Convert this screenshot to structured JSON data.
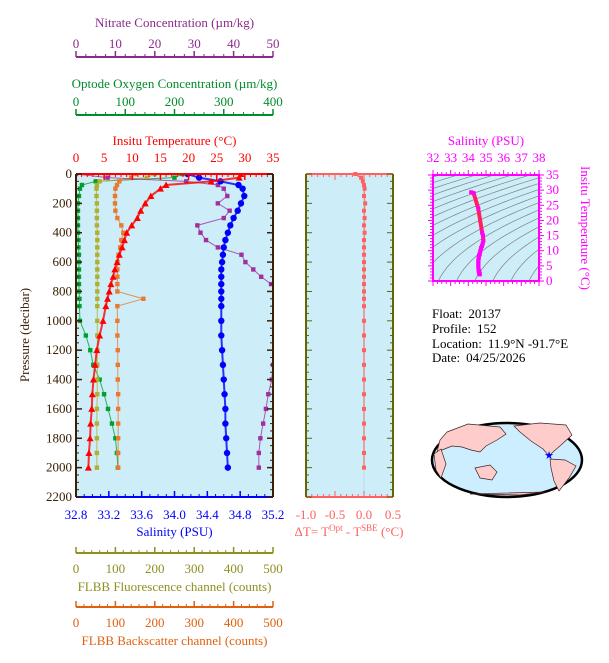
{
  "chart_data": [
    {
      "type": "line",
      "title": "",
      "grid": false,
      "axes": {
        "pressure": {
          "label": "Pressure (decibar)",
          "range": [
            0,
            2200
          ],
          "tick_labels": [
            "0",
            "200",
            "400",
            "600",
            "800",
            "1000",
            "1200",
            "1400",
            "1600",
            "1800",
            "2000",
            "2200"
          ],
          "color": "#3a2005",
          "inverted": true
        },
        "temperature": {
          "label": "Insitu Temperature (°C)",
          "range": [
            0,
            35
          ],
          "tick_labels": [
            "0",
            "5",
            "10",
            "15",
            "20",
            "25",
            "30",
            "35"
          ],
          "color": "#ff0000"
        },
        "salinity": {
          "label": "Salinity (PSU)",
          "range": [
            32.8,
            35.2
          ],
          "tick_labels": [
            "32.8",
            "33.2",
            "33.6",
            "34.0",
            "34.4",
            "34.8",
            "35.2"
          ],
          "color": "#0000ff"
        },
        "oxygen": {
          "label": "Optode Oxygen Concentration (µm/kg)",
          "range": [
            0,
            400
          ],
          "tick_labels": [
            "0",
            "100",
            "200",
            "300",
            "400"
          ],
          "color": "#008c2a"
        },
        "nitrate": {
          "label": "Nitrate Concentration (µm/kg)",
          "range": [
            0,
            50
          ],
          "tick_labels": [
            "0",
            "10",
            "20",
            "30",
            "40",
            "50"
          ],
          "color": "#8b2a8b"
        },
        "fluorescence": {
          "label": "FLBB Fluorescence channel (counts)",
          "range": [
            0,
            500
          ],
          "tick_labels": [
            "0",
            "100",
            "200",
            "300",
            "400",
            "500"
          ],
          "color": "#8f8f1f"
        },
        "backscatter": {
          "label": "FLBB Backscatter channel (counts)",
          "range": [
            0,
            500
          ],
          "tick_labels": [
            "0",
            "100",
            "200",
            "300",
            "400",
            "500"
          ],
          "color": "#e06010"
        }
      },
      "pressure": [
        0,
        25,
        50,
        75,
        100,
        150,
        200,
        250,
        300,
        350,
        400,
        450,
        500,
        550,
        600,
        650,
        700,
        750,
        800,
        850,
        900,
        1000,
        1100,
        1200,
        1300,
        1400,
        1500,
        1600,
        1700,
        1800,
        1900,
        2000
      ],
      "series": [
        {
          "axis": "oxygen",
          "color": "#00a030",
          "marker": "square",
          "values": [
            216,
            200,
            40,
            12,
            8,
            6,
            4,
            4,
            4,
            4,
            4,
            5,
            5,
            6,
            6,
            6,
            6,
            6,
            6,
            7,
            7,
            8,
            20,
            29,
            35,
            48,
            57,
            65,
            73,
            80,
            83,
            85
          ]
        },
        {
          "axis": "fluorescence",
          "color": "#b0b030",
          "marker": "square",
          "values": [
            200,
            180,
            60,
            53,
            52,
            52,
            53,
            53,
            53,
            53,
            54,
            54,
            54,
            54,
            54,
            54,
            54,
            54,
            54,
            54,
            54,
            54,
            54,
            54,
            54,
            54,
            54,
            53,
            53,
            53,
            53,
            53
          ]
        },
        {
          "axis": "backscatter",
          "color": "#e87a30",
          "marker": "square",
          "values": [
            150,
            140,
            110,
            104,
            100,
            99,
            99,
            100,
            105,
            115,
            120,
            115,
            112,
            108,
            105,
            105,
            105,
            105,
            105,
            171,
            105,
            105,
            105,
            106,
            106,
            106,
            107,
            107,
            107,
            107,
            107,
            107
          ]
        },
        {
          "axis": "nitrate",
          "color": "#a030a0",
          "marker": "square",
          "values": [
            0,
            8,
            28,
            36,
            37.5,
            38.4,
            36,
            39,
            37.5,
            30.8,
            31.6,
            33,
            36,
            42,
            43,
            45,
            47,
            49.5,
            51,
            52,
            52,
            52,
            52,
            51,
            50,
            49.7,
            48.8,
            48.2,
            47.5,
            46.8,
            46.4,
            46.4
          ]
        },
        {
          "axis": "salinity",
          "color": "#0000ff",
          "marker": "circle",
          "values": [
            34.16,
            34.3,
            34.56,
            34.78,
            34.83,
            34.85,
            34.81,
            34.77,
            34.72,
            34.68,
            34.65,
            34.62,
            34.6,
            34.59,
            34.58,
            34.57,
            34.57,
            34.57,
            34.57,
            34.57,
            34.57,
            34.57,
            34.57,
            34.58,
            34.59,
            34.6,
            34.61,
            34.62,
            34.62,
            34.63,
            34.64,
            34.65
          ]
        },
        {
          "axis": "temperature",
          "color": "#ff0000",
          "marker": "triangle",
          "values": [
            29.3,
            29.0,
            24,
            16,
            15,
            13.3,
            12.3,
            11.5,
            10.9,
            9.9,
            9.0,
            8.6,
            8.2,
            7.7,
            7.3,
            6.9,
            6.6,
            6.2,
            5.9,
            5.6,
            5.3,
            4.8,
            4.2,
            3.7,
            3.4,
            3.1,
            2.9,
            2.8,
            2.6,
            2.5,
            2.3,
            2.2
          ]
        }
      ]
    },
    {
      "type": "line",
      "title": "",
      "axes": {
        "x": {
          "label_parts": [
            "ΔT= T",
            "Opt",
            " - T",
            "SBE",
            " (°C)"
          ],
          "range": [
            -1.0,
            0.5
          ],
          "tick_labels": [
            "-1.0",
            "-0.5",
            "0.0",
            "0.5"
          ],
          "color": "#ff6060"
        },
        "y": {
          "range": [
            0,
            2200
          ],
          "color": "#666600"
        }
      },
      "pressure": [
        0,
        25,
        50,
        75,
        100,
        150,
        200,
        250,
        300,
        350,
        400,
        450,
        500,
        550,
        600,
        650,
        700,
        750,
        800,
        850,
        900,
        1000,
        1100,
        1200,
        1300,
        1400,
        1500,
        1600,
        1700,
        1800,
        1900,
        2000
      ],
      "values": [
        -0.15,
        -0.05,
        -0.02,
        0,
        0.01,
        0,
        0.02,
        0,
        0.01,
        0,
        0.01,
        0,
        0,
        0,
        0,
        0,
        0,
        0,
        0,
        0,
        0,
        0,
        0,
        0,
        0,
        0,
        0,
        0,
        0,
        0,
        0,
        0
      ],
      "color": "#ff6060"
    },
    {
      "type": "scatter",
      "title": "",
      "axes": {
        "x": {
          "label": "Salinity (PSU)",
          "range": [
            32,
            38
          ],
          "tick_labels": [
            "32",
            "33",
            "34",
            "35",
            "36",
            "37",
            "38"
          ]
        },
        "y": {
          "label": "Insitu Temperature (°C)",
          "range": [
            0,
            35
          ],
          "tick_labels": [
            "0",
            "5",
            "10",
            "15",
            "20",
            "25",
            "30",
            "35"
          ]
        }
      },
      "color": "#ff00ff",
      "density_contours": true,
      "x": [
        34.16,
        34.3,
        34.56,
        34.78,
        34.83,
        34.85,
        34.81,
        34.77,
        34.72,
        34.68,
        34.65,
        34.62,
        34.6,
        34.59,
        34.58,
        34.57,
        34.57,
        34.57,
        34.57,
        34.57,
        34.57,
        34.57,
        34.57,
        34.58,
        34.59,
        34.6,
        34.61,
        34.62,
        34.62,
        34.63,
        34.64,
        34.65
      ],
      "y": [
        29.3,
        29.0,
        24,
        16,
        15,
        13.3,
        12.3,
        11.5,
        10.9,
        9.9,
        9.0,
        8.6,
        8.2,
        7.7,
        7.3,
        6.9,
        6.6,
        6.2,
        5.9,
        5.6,
        5.3,
        4.8,
        4.2,
        3.7,
        3.4,
        3.1,
        2.9,
        2.8,
        2.6,
        2.5,
        2.3,
        2.2
      ]
    }
  ],
  "info": {
    "float_label": "Float:",
    "float": "20137",
    "profile_label": "Profile:",
    "profile": "152",
    "location_label": "Location:",
    "location": "11.9°N  -91.7°E",
    "date_label": "Date:",
    "date": "04/25/2026"
  },
  "map": {
    "marker_icon": "star",
    "marker_color": "#0000ff",
    "land_color": "#ffcccc",
    "ocean_color": "#cceeff"
  },
  "colors": {
    "plot_bg": "#cdeef8",
    "contour": "#808080"
  }
}
